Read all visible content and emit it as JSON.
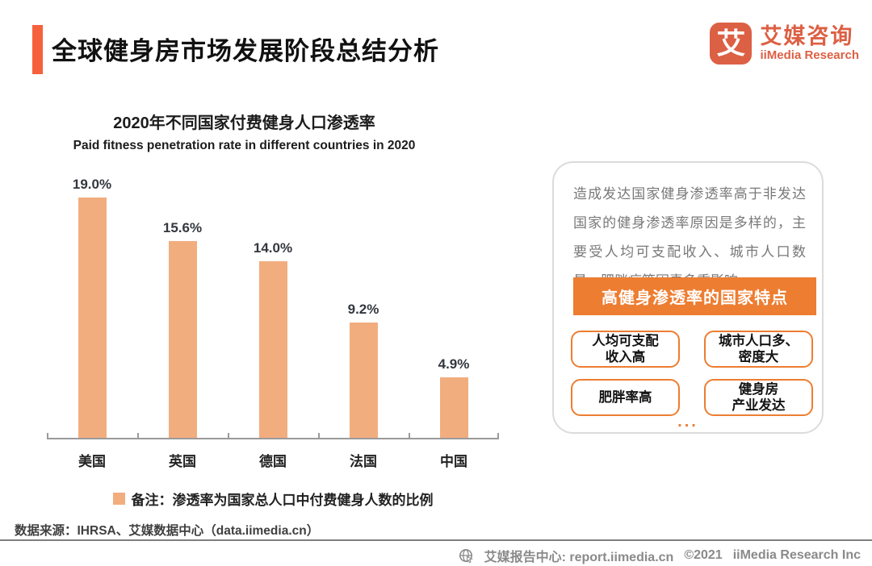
{
  "header": {
    "title": "全球健身房市场发展阶段总结分析"
  },
  "logo": {
    "glyph": "艾",
    "name_cn": "艾媒咨询",
    "name_en": "iiMedia Research"
  },
  "chart_data": {
    "type": "bar",
    "title": "2020年不同国家付费健身人口渗透率",
    "subtitle": "Paid fitness penetration rate in different countries in 2020",
    "categories": [
      "美国",
      "英国",
      "德国",
      "法国",
      "中国"
    ],
    "values": [
      19.0,
      15.6,
      14.0,
      9.2,
      4.9
    ],
    "labels": [
      "19.0%",
      "15.6%",
      "14.0%",
      "9.2%",
      "4.9%"
    ],
    "ylim": [
      0,
      20
    ],
    "grid": false,
    "legend_position": "bottom",
    "bar_color": "#F2AD7F"
  },
  "chart": {
    "legend_note": "备注：渗透率为国家总人口中付费健身人数的比例"
  },
  "panel": {
    "paragraph": "造成发达国家健身渗透率高于非发达国家的健身渗透率原因是多样的，主要受人均可支配收入、城市人口数量、肥胖症等因素多重影响。",
    "banner": "高健身渗透率的国家特点",
    "features": [
      [
        "人均可支配",
        "收入高"
      ],
      [
        "城市人口多、",
        "密度大"
      ],
      [
        "肥胖率高"
      ],
      [
        "健身房",
        "产业发达"
      ]
    ],
    "more": "..."
  },
  "source": {
    "text": "数据来源：IHRSA、艾媒数据中心（data.iimedia.cn）"
  },
  "footer": {
    "site": "艾媒报告中心: report.iimedia.cn",
    "copyright": "©2021",
    "company": "iiMedia Research Inc"
  },
  "colors": {
    "accent_bar": "#F5613C",
    "brand": "#DC6044",
    "banner_orange": "#ED7D31",
    "bar_fill": "#F2AD7F"
  }
}
